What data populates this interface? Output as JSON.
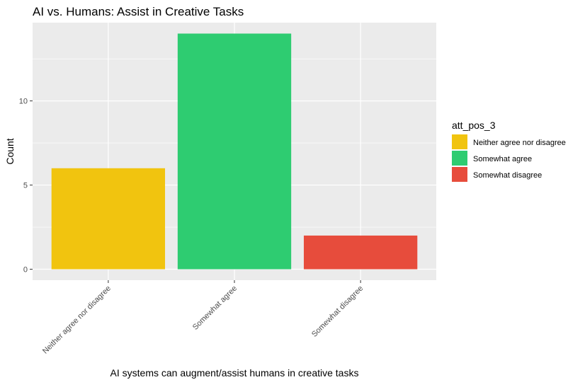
{
  "chart_data": {
    "type": "bar",
    "title": "AI vs. Humans: Assist in Creative Tasks",
    "xlabel": "AI systems can augment/assist humans in creative tasks",
    "ylabel": "Count",
    "categories": [
      "Neither agree nor disagree",
      "Somewhat agree",
      "Somewhat disagree"
    ],
    "values": [
      6,
      14,
      2
    ],
    "colors": [
      "#F1C40F",
      "#2ECC71",
      "#E74C3C"
    ],
    "ylim": [
      -0.65,
      14.65
    ],
    "yticks": [
      0,
      5,
      10
    ],
    "grid": true,
    "legend": {
      "title": "att_pos_3",
      "position": "right",
      "entries": [
        "Neither agree nor disagree",
        "Somewhat agree",
        "Somewhat disagree"
      ]
    }
  }
}
